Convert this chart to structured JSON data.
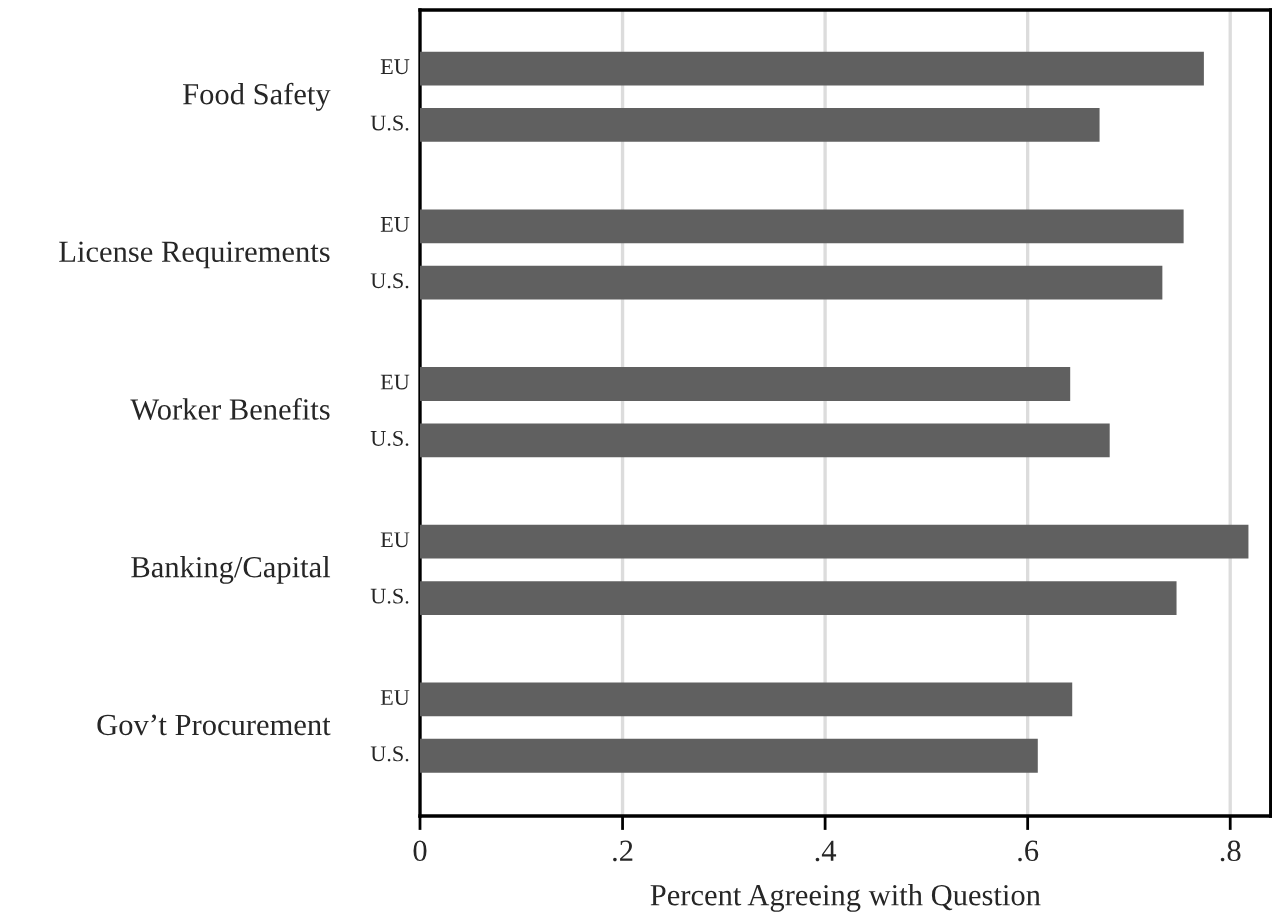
{
  "chart_data": {
    "type": "bar",
    "orientation": "horizontal",
    "xlabel": "Percent Agreeing with Question",
    "categories": [
      "Food Safety",
      "License Requirements",
      "Worker Benefits",
      "Banking/Capital",
      "Gov’t Procurement"
    ],
    "series": [
      {
        "name": "EU",
        "color": "#606060",
        "values": [
          0.774,
          0.754,
          0.642,
          0.818,
          0.644
        ]
      },
      {
        "name": "U.S.",
        "color": "#606060",
        "values": [
          0.671,
          0.733,
          0.681,
          0.747,
          0.61
        ]
      }
    ],
    "xlim": [
      0,
      0.84
    ],
    "xticks": [
      0,
      {
        "value": 0.2,
        "label": ".2"
      },
      {
        "value": 0.4,
        "label": ".4"
      },
      {
        "value": 0.6,
        "label": ".6"
      },
      {
        "value": 0.8,
        "label": ".8"
      }
    ],
    "grid": "x"
  }
}
